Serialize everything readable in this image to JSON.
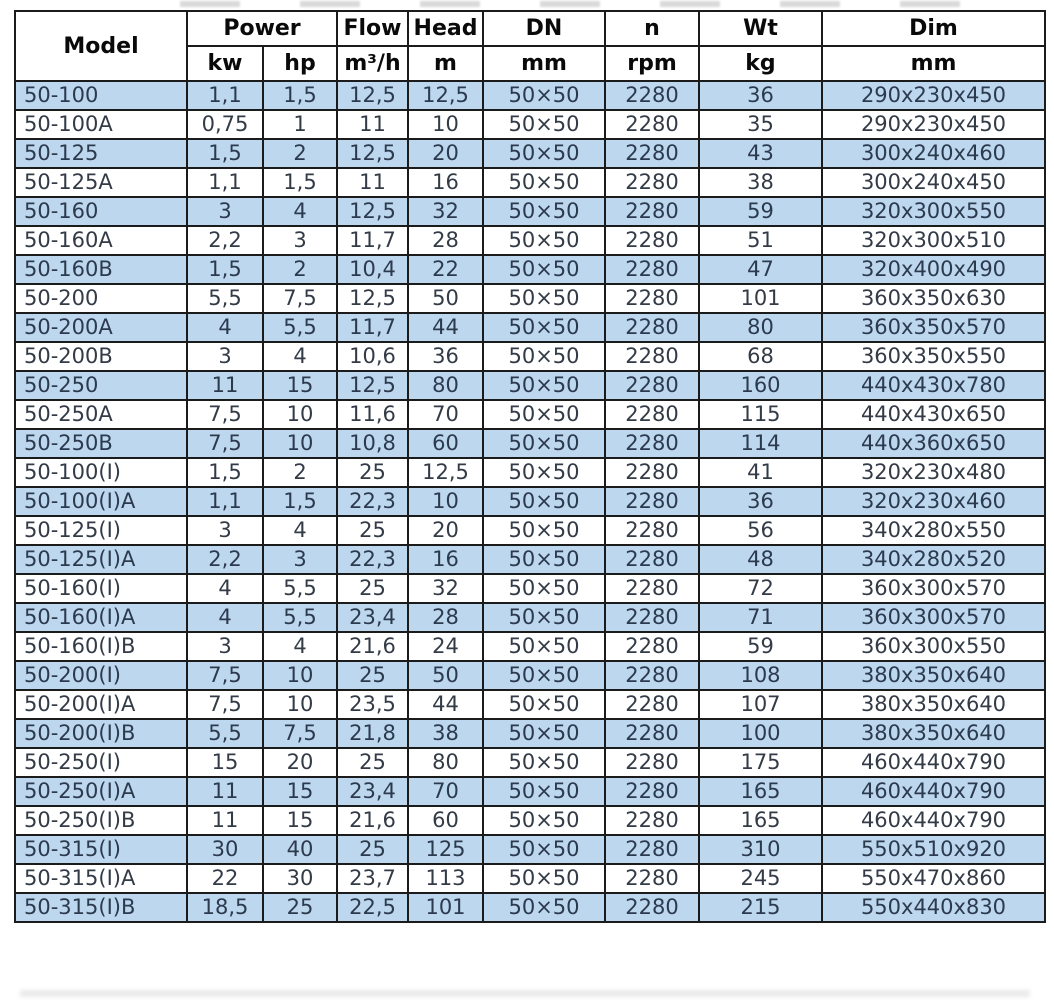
{
  "table": {
    "header": {
      "model": "Model",
      "power": "Power",
      "power_unit_kw": "kw",
      "power_unit_hp": "hp",
      "flow": "Flow",
      "flow_unit": "m³/h",
      "head": "Head",
      "head_unit": "m",
      "dn": "DN",
      "dn_unit": "mm",
      "n": "n",
      "n_unit": "rpm",
      "wt": "Wt",
      "wt_unit": "kg",
      "dim": "Dim",
      "dim_unit": "mm"
    },
    "rows": [
      [
        "50-100",
        "1,1",
        "1,5",
        "12,5",
        "12,5",
        "50×50",
        "2280",
        "36",
        "290x230x450"
      ],
      [
        "50-100A",
        "0,75",
        "1",
        "11",
        "10",
        "50×50",
        "2280",
        "35",
        "290x230x450"
      ],
      [
        "50-125",
        "1,5",
        "2",
        "12,5",
        "20",
        "50×50",
        "2280",
        "43",
        "300x240x460"
      ],
      [
        "50-125A",
        "1,1",
        "1,5",
        "11",
        "16",
        "50×50",
        "2280",
        "38",
        "300x240x450"
      ],
      [
        "50-160",
        "3",
        "4",
        "12,5",
        "32",
        "50×50",
        "2280",
        "59",
        "320x300x550"
      ],
      [
        "50-160A",
        "2,2",
        "3",
        "11,7",
        "28",
        "50×50",
        "2280",
        "51",
        "320x300x510"
      ],
      [
        "50-160B",
        "1,5",
        "2",
        "10,4",
        "22",
        "50×50",
        "2280",
        "47",
        "320x400x490"
      ],
      [
        "50-200",
        "5,5",
        "7,5",
        "12,5",
        "50",
        "50×50",
        "2280",
        "101",
        "360x350x630"
      ],
      [
        "50-200A",
        "4",
        "5,5",
        "11,7",
        "44",
        "50×50",
        "2280",
        "80",
        "360x350x570"
      ],
      [
        "50-200B",
        "3",
        "4",
        "10,6",
        "36",
        "50×50",
        "2280",
        "68",
        "360x350x550"
      ],
      [
        "50-250",
        "11",
        "15",
        "12,5",
        "80",
        "50×50",
        "2280",
        "160",
        "440x430x780"
      ],
      [
        "50-250A",
        "7,5",
        "10",
        "11,6",
        "70",
        "50×50",
        "2280",
        "115",
        "440x430x650"
      ],
      [
        "50-250B",
        "7,5",
        "10",
        "10,8",
        "60",
        "50×50",
        "2280",
        "114",
        "440x360x650"
      ],
      [
        "50-100(I)",
        "1,5",
        "2",
        "25",
        "12,5",
        "50×50",
        "2280",
        "41",
        "320x230x480"
      ],
      [
        "50-100(I)A",
        "1,1",
        "1,5",
        "22,3",
        "10",
        "50×50",
        "2280",
        "36",
        "320x230x460"
      ],
      [
        "50-125(I)",
        "3",
        "4",
        "25",
        "20",
        "50×50",
        "2280",
        "56",
        "340x280x550"
      ],
      [
        "50-125(I)A",
        "2,2",
        "3",
        "22,3",
        "16",
        "50×50",
        "2280",
        "48",
        "340x280x520"
      ],
      [
        "50-160(I)",
        "4",
        "5,5",
        "25",
        "32",
        "50×50",
        "2280",
        "72",
        "360x300x570"
      ],
      [
        "50-160(I)A",
        "4",
        "5,5",
        "23,4",
        "28",
        "50×50",
        "2280",
        "71",
        "360x300x570"
      ],
      [
        "50-160(I)B",
        "3",
        "4",
        "21,6",
        "24",
        "50×50",
        "2280",
        "59",
        "360x300x550"
      ],
      [
        "50-200(I)",
        "7,5",
        "10",
        "25",
        "50",
        "50×50",
        "2280",
        "108",
        "380x350x640"
      ],
      [
        "50-200(I)A",
        "7,5",
        "10",
        "23,5",
        "44",
        "50×50",
        "2280",
        "107",
        "380x350x640"
      ],
      [
        "50-200(I)B",
        "5,5",
        "7,5",
        "21,8",
        "38",
        "50×50",
        "2280",
        "100",
        "380x350x640"
      ],
      [
        "50-250(I)",
        "15",
        "20",
        "25",
        "80",
        "50×50",
        "2280",
        "175",
        "460x440x790"
      ],
      [
        "50-250(I)A",
        "11",
        "15",
        "23,4",
        "70",
        "50×50",
        "2280",
        "165",
        "460x440x790"
      ],
      [
        "50-250(I)B",
        "11",
        "15",
        "21,6",
        "60",
        "50×50",
        "2280",
        "165",
        "460x440x790"
      ],
      [
        "50-315(I)",
        "30",
        "40",
        "25",
        "125",
        "50×50",
        "2280",
        "310",
        "550x510x920"
      ],
      [
        "50-315(I)A",
        "22",
        "30",
        "23,7",
        "113",
        "50×50",
        "2280",
        "245",
        "550x470x860"
      ],
      [
        "50-315(I)B",
        "18,5",
        "25",
        "22,5",
        "101",
        "50×50",
        "2280",
        "215",
        "550x440x830"
      ]
    ]
  },
  "colors": {
    "row_stripe": "#bdd7ee",
    "grid_border": "#1b1b1b",
    "body_text": "#333b47",
    "header_text": "#0a0a0a"
  }
}
